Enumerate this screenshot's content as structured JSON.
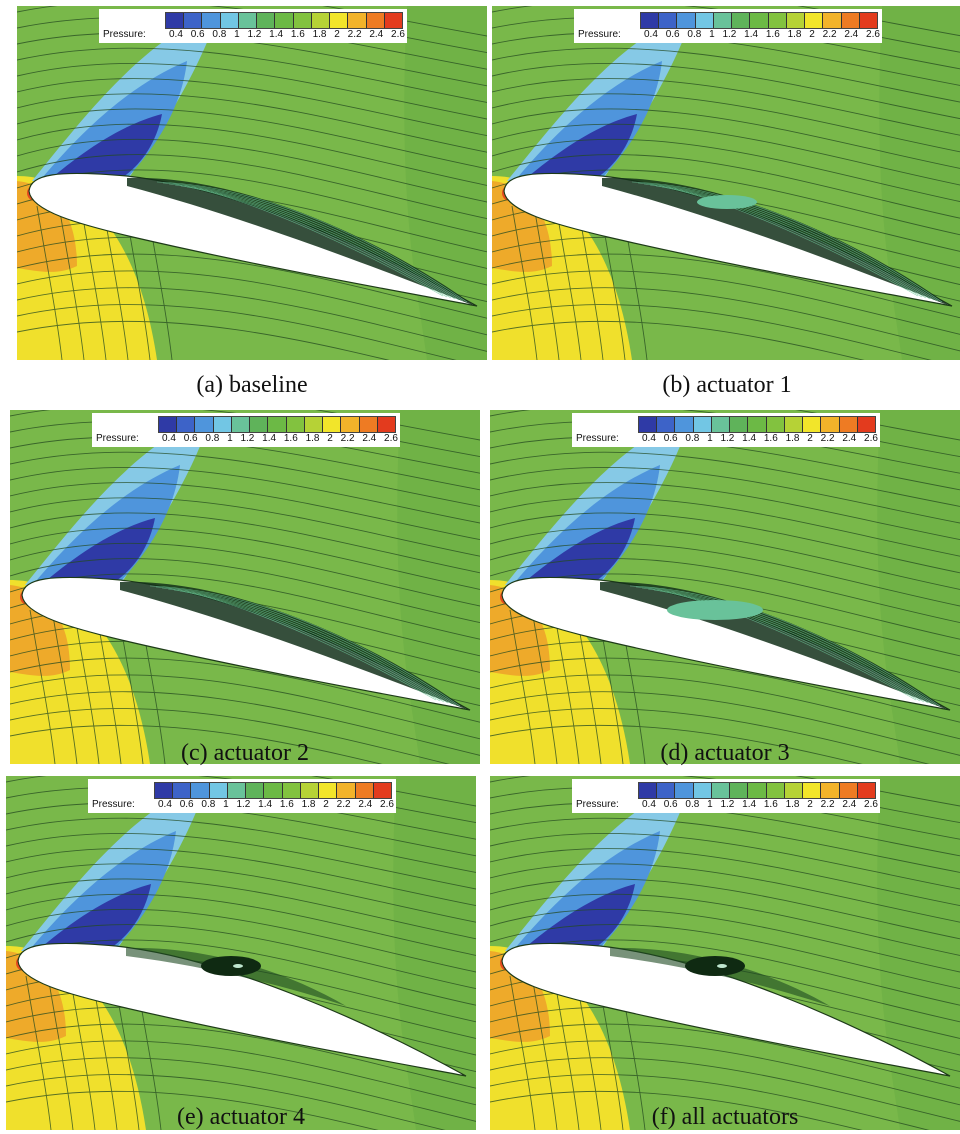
{
  "legend": {
    "title": "Pressure:",
    "ticks": [
      "0.4",
      "0.6",
      "0.8",
      "1",
      "1.2",
      "1.4",
      "1.6",
      "1.8",
      "2",
      "2.2",
      "2.4",
      "2.6"
    ],
    "colors": [
      "#2f3aa6",
      "#3d63c8",
      "#4f95dc",
      "#72c6e4",
      "#69c29a",
      "#5fb35a",
      "#6cb945",
      "#82c23f",
      "#b6d236",
      "#f2e52a",
      "#f2b32a",
      "#ee7b23",
      "#e33b1e"
    ]
  },
  "colors": {
    "background": "#79b84a",
    "upper_light": "#86c9e6",
    "upper_mid": "#4f95dc",
    "upper_dark": "#2f3aa6",
    "lower_yellow": "#f0e02c",
    "lower_orange": "#eeaa2a",
    "stagnation": "#e44a1f",
    "streamline": "#244a20",
    "bubble_fill": "#69c29a"
  },
  "panels": [
    {
      "caption": "(a) baseline",
      "separation": "large",
      "bubble": "none"
    },
    {
      "caption": "(b) actuator 1",
      "separation": "large",
      "bubble": "small-ellipse"
    },
    {
      "caption": "(c) actuator 2",
      "separation": "large",
      "bubble": "none"
    },
    {
      "caption": "(d) actuator 3",
      "separation": "large",
      "bubble": "large-ellipse"
    },
    {
      "caption": "(e) actuator 4",
      "separation": "small",
      "bubble": "vortex"
    },
    {
      "caption": "(f) all actuators",
      "separation": "small",
      "bubble": "vortex"
    }
  ]
}
